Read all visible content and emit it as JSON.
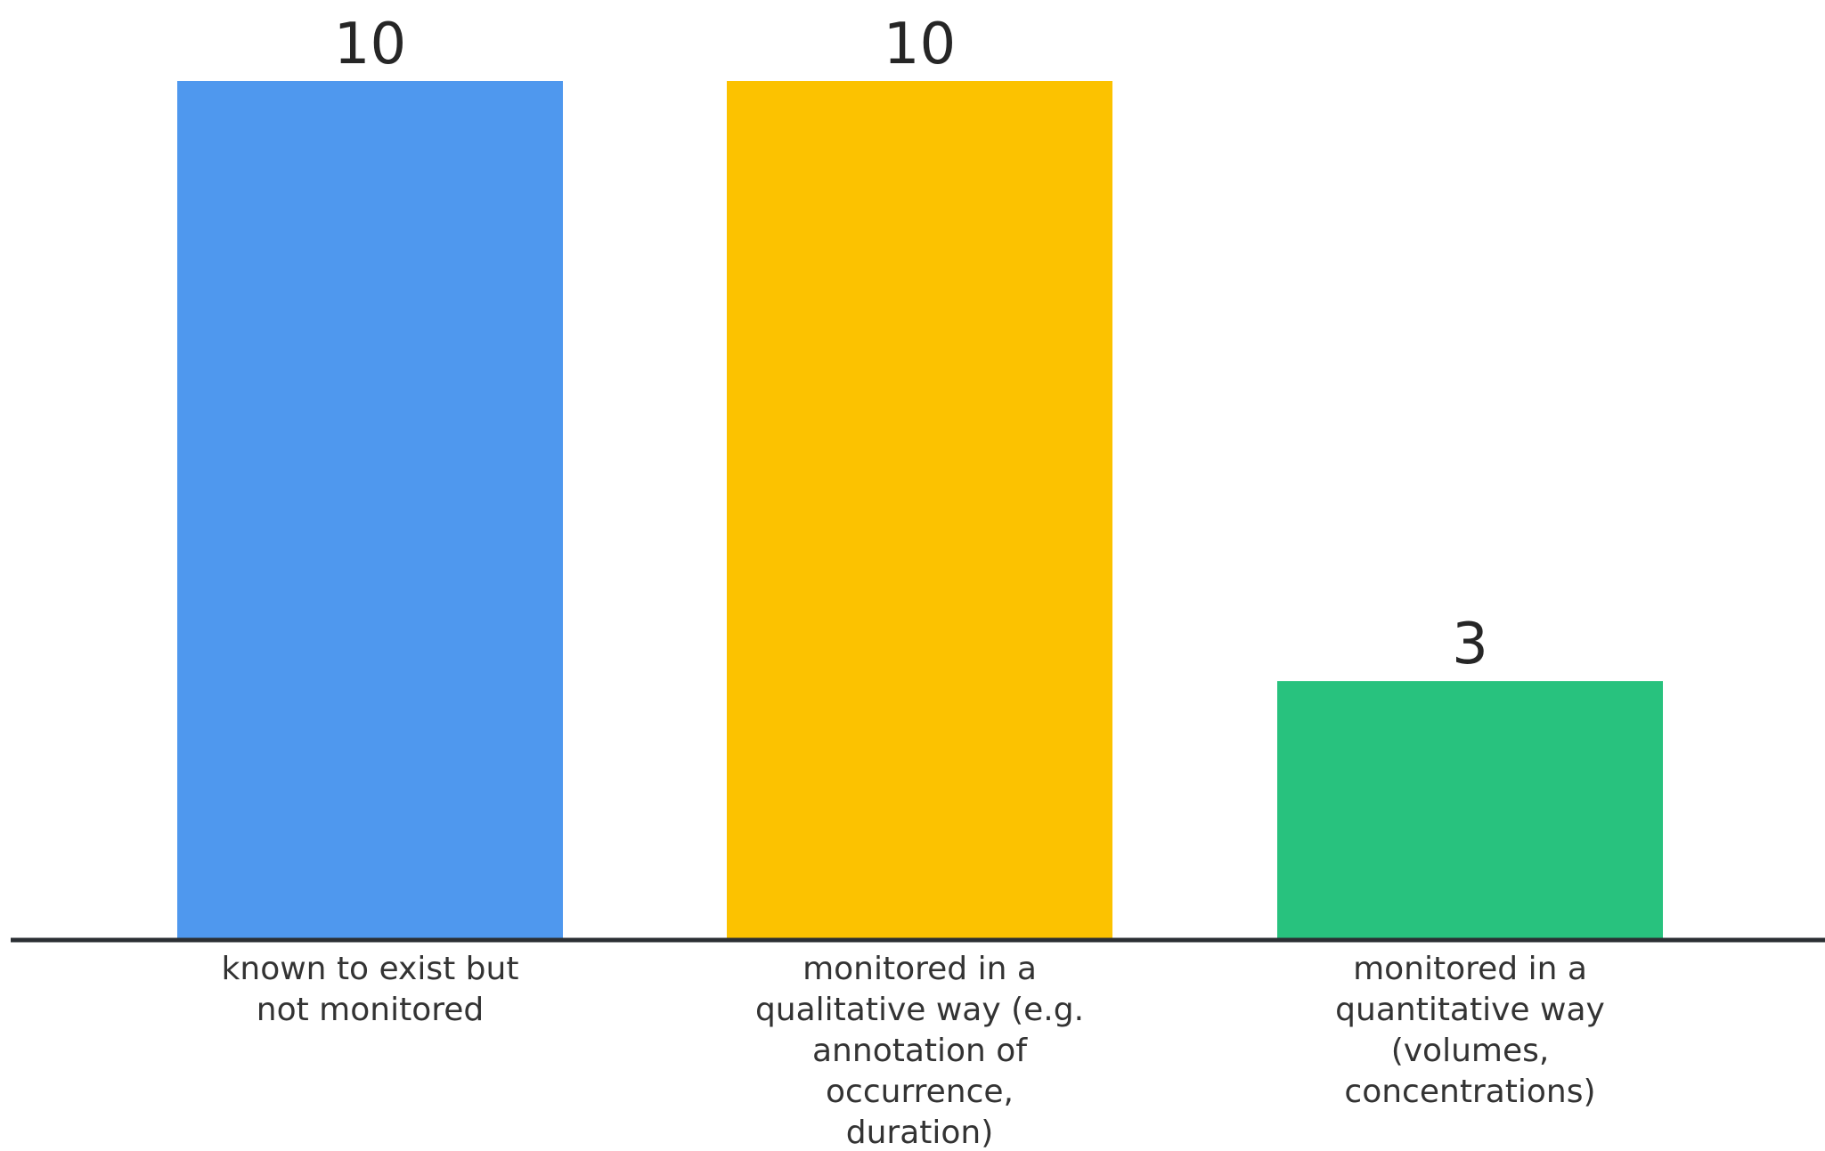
{
  "chart_data": {
    "type": "bar",
    "categories": [
      [
        "known to exist but",
        "not monitored"
      ],
      [
        "monitored in a",
        "qualitative way (e.g.",
        "annotation of",
        "occurrence,",
        "duration)"
      ],
      [
        "monitored in a",
        "quantitative way",
        "(volumes,",
        "concentrations)"
      ]
    ],
    "values": [
      10,
      10,
      3
    ],
    "colors": [
      "#4f98ee",
      "#fcc200",
      "#28c27e"
    ],
    "ylim": [
      0,
      10
    ],
    "grid": false,
    "legend": "none",
    "title": "",
    "xlabel": "",
    "ylabel": ""
  }
}
